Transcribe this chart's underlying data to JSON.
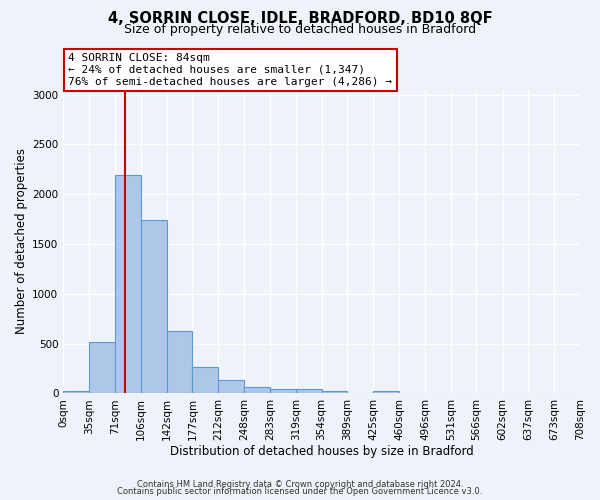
{
  "title": "4, SORRIN CLOSE, IDLE, BRADFORD, BD10 8QF",
  "subtitle": "Size of property relative to detached houses in Bradford",
  "xlabel": "Distribution of detached houses by size in Bradford",
  "ylabel": "Number of detached properties",
  "bin_labels": [
    "0sqm",
    "35sqm",
    "71sqm",
    "106sqm",
    "142sqm",
    "177sqm",
    "212sqm",
    "248sqm",
    "283sqm",
    "319sqm",
    "354sqm",
    "389sqm",
    "425sqm",
    "460sqm",
    "496sqm",
    "531sqm",
    "566sqm",
    "602sqm",
    "637sqm",
    "673sqm",
    "708sqm"
  ],
  "bar_values": [
    20,
    520,
    2190,
    1740,
    630,
    260,
    130,
    65,
    40,
    40,
    25,
    5,
    20,
    5,
    5,
    0,
    0,
    0,
    0,
    0
  ],
  "bar_color": "#aec6e8",
  "bar_edge_color": "#5b9bd5",
  "vline_x": 84,
  "vline_color": "#cc0000",
  "ylim": [
    0,
    3050
  ],
  "yticks": [
    0,
    500,
    1000,
    1500,
    2000,
    2500,
    3000
  ],
  "annotation_title": "4 SORRIN CLOSE: 84sqm",
  "annotation_line1": "← 24% of detached houses are smaller (1,347)",
  "annotation_line2": "76% of semi-detached houses are larger (4,286) →",
  "annotation_box_color": "#cc0000",
  "footer_line1": "Contains HM Land Registry data © Crown copyright and database right 2024.",
  "footer_line2": "Contains public sector information licensed under the Open Government Licence v3.0.",
  "background_color": "#eef2f9",
  "grid_color": "#ffffff",
  "bin_edges": [
    0,
    35,
    71,
    106,
    142,
    177,
    212,
    248,
    283,
    319,
    354,
    389,
    425,
    460,
    496,
    531,
    566,
    602,
    637,
    673,
    708
  ]
}
